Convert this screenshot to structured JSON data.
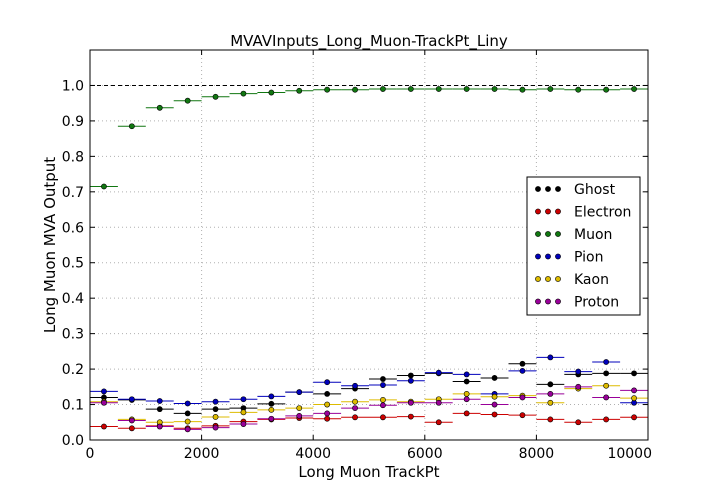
{
  "chart_data": {
    "type": "scatter",
    "title": "MVAVInputs_Long_Muon-TrackPt_Liny",
    "xlabel": "Long Muon TrackPt",
    "ylabel": "Long Muon MVA Output",
    "xlim": [
      0,
      10000
    ],
    "ylim": [
      0.0,
      1.1
    ],
    "xticks": [
      0,
      2000,
      4000,
      6000,
      8000,
      10000
    ],
    "xtick_labels": [
      "0",
      "2000",
      "4000",
      "6000",
      "8000",
      "10000"
    ],
    "yticks": [
      0.0,
      0.1,
      0.2,
      0.3,
      0.4,
      0.5,
      0.6,
      0.7,
      0.8,
      0.9,
      1.0
    ],
    "ytick_labels": [
      "0.0",
      "0.1",
      "0.2",
      "0.3",
      "0.4",
      "0.5",
      "0.6",
      "0.7",
      "0.8",
      "0.9",
      "1.0"
    ],
    "grid": true,
    "reference_line_y": 1.0,
    "legend_position": "right",
    "bin_width": 500,
    "x": [
      250,
      750,
      1250,
      1750,
      2250,
      2750,
      3250,
      3750,
      4250,
      4750,
      5250,
      5750,
      6250,
      6750,
      7250,
      7750,
      8250,
      8750,
      9250,
      9750
    ],
    "series": [
      {
        "name": "Ghost",
        "color": "#000000",
        "values": [
          0.12,
          0.113,
          0.087,
          0.075,
          0.087,
          0.09,
          0.102,
          0.135,
          0.13,
          0.145,
          0.172,
          0.182,
          0.188,
          0.165,
          0.175,
          0.215,
          0.157,
          0.185,
          0.188,
          0.188
        ]
      },
      {
        "name": "Electron",
        "color": "#cc0000",
        "values": [
          0.038,
          0.033,
          0.04,
          0.033,
          0.04,
          0.052,
          0.058,
          0.062,
          0.06,
          0.064,
          0.064,
          0.066,
          0.05,
          0.075,
          0.072,
          0.07,
          0.058,
          0.05,
          0.058,
          0.064
        ]
      },
      {
        "name": "Muon",
        "color": "#117711",
        "values": [
          0.715,
          0.885,
          0.937,
          0.957,
          0.968,
          0.977,
          0.98,
          0.985,
          0.988,
          0.988,
          0.99,
          0.99,
          0.99,
          0.99,
          0.99,
          0.988,
          0.99,
          0.988,
          0.988,
          0.99
        ]
      },
      {
        "name": "Pion",
        "color": "#0000bb",
        "values": [
          0.137,
          0.115,
          0.11,
          0.103,
          0.108,
          0.115,
          0.123,
          0.135,
          0.163,
          0.153,
          0.155,
          0.167,
          0.19,
          0.185,
          0.13,
          0.195,
          0.233,
          0.193,
          0.22,
          0.105
        ]
      },
      {
        "name": "Kaon",
        "color": "#ddbb00",
        "values": [
          0.108,
          0.058,
          0.05,
          0.052,
          0.065,
          0.078,
          0.085,
          0.09,
          0.1,
          0.108,
          0.113,
          0.108,
          0.115,
          0.13,
          0.122,
          0.125,
          0.105,
          0.145,
          0.153,
          0.118
        ]
      },
      {
        "name": "Proton",
        "color": "#990099",
        "values": [
          0.105,
          0.055,
          0.038,
          0.03,
          0.035,
          0.045,
          0.06,
          0.068,
          0.075,
          0.09,
          0.098,
          0.105,
          0.105,
          0.115,
          0.1,
          0.12,
          0.13,
          0.15,
          0.12,
          0.14
        ]
      }
    ]
  }
}
